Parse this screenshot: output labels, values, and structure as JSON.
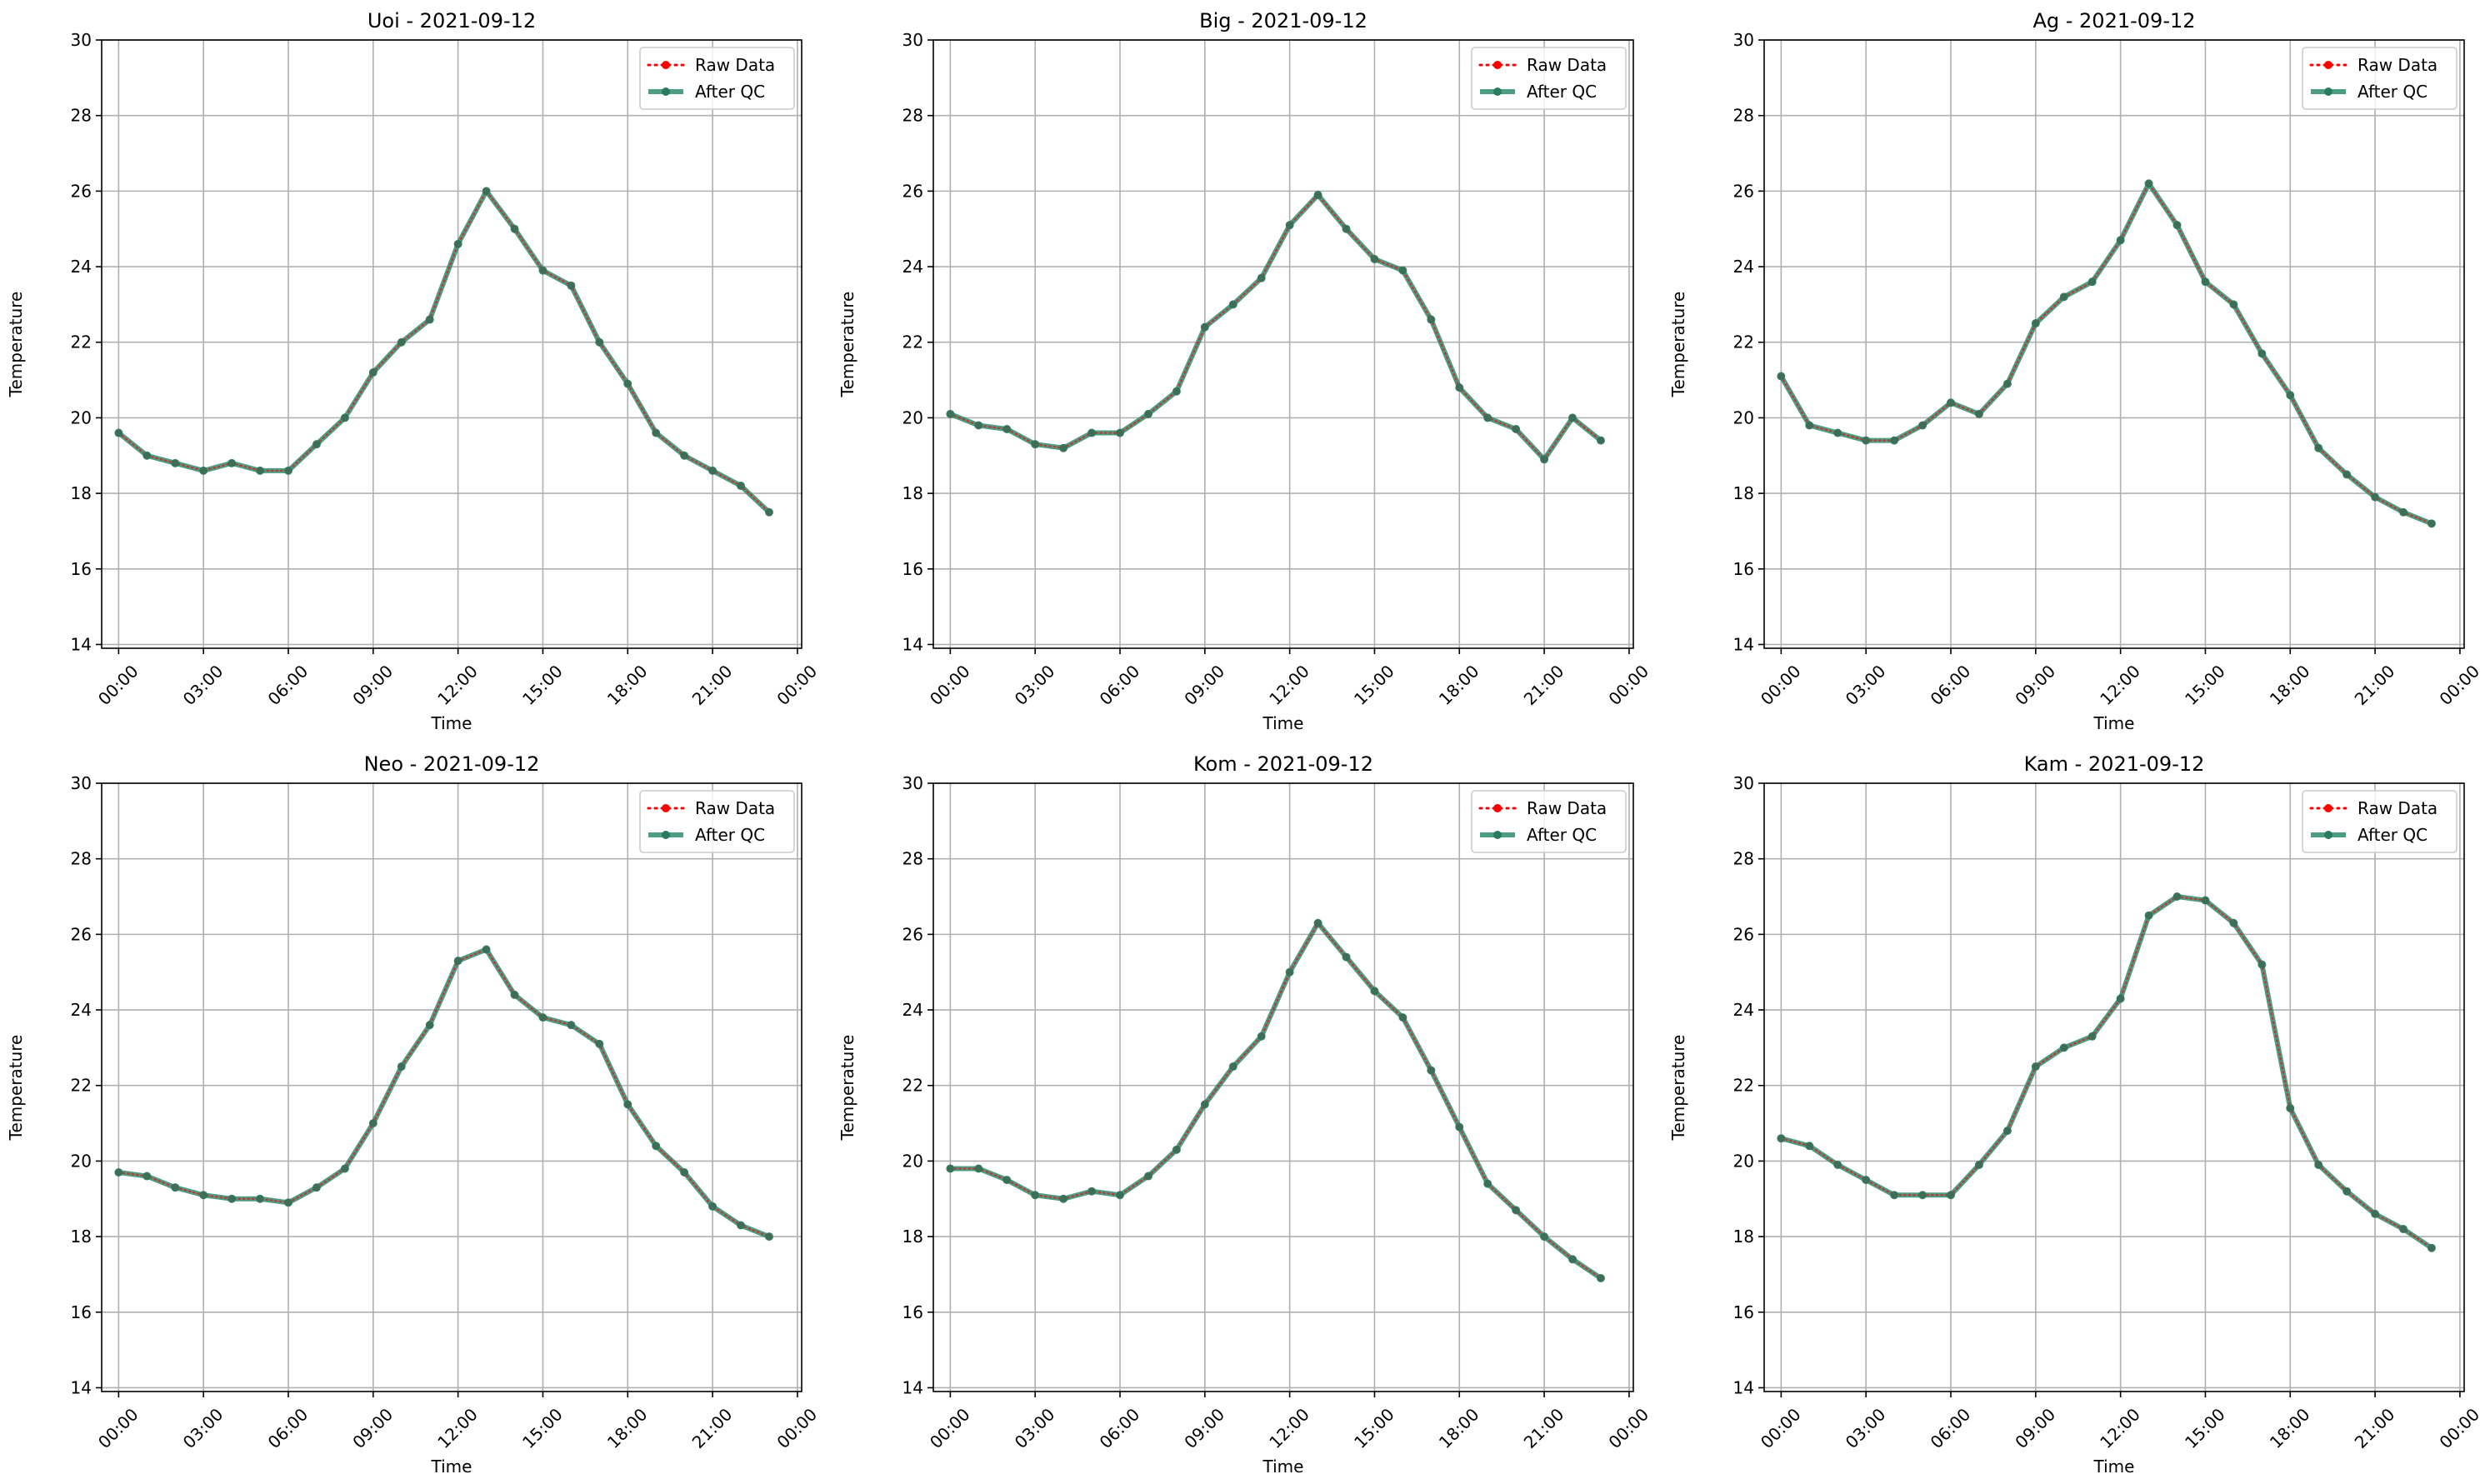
{
  "figure": {
    "date": "2021-09-12"
  },
  "chart_data": [
    {
      "type": "line",
      "title": "Uoi - 2021-09-12",
      "xlabel": "Time",
      "ylabel": "Temperature",
      "x_tick_labels": [
        "00:00",
        "03:00",
        "06:00",
        "09:00",
        "12:00",
        "15:00",
        "18:00",
        "21:00",
        "00:00"
      ],
      "x_ticks_hours": [
        0,
        3,
        6,
        9,
        12,
        15,
        18,
        21,
        24
      ],
      "xlim_hours": [
        -0.6,
        24.15
      ],
      "ylim": [
        13.9,
        30
      ],
      "y_ticks": [
        14,
        16,
        18,
        20,
        22,
        24,
        26,
        28,
        30
      ],
      "grid": true,
      "legend_position": "upper-right",
      "hours": [
        0,
        1,
        2,
        3,
        4,
        5,
        6,
        7,
        8,
        9,
        10,
        11,
        12,
        13,
        14,
        15,
        16,
        17,
        18,
        19,
        20,
        21,
        22,
        23
      ],
      "series": [
        {
          "name": "Raw Data",
          "color": "#ff0000",
          "style": "dotted-markers",
          "values": [
            19.6,
            19.0,
            18.8,
            18.6,
            18.8,
            18.6,
            18.6,
            19.3,
            20.0,
            21.2,
            22.0,
            22.6,
            24.6,
            26.0,
            25.0,
            23.9,
            23.5,
            22.0,
            20.9,
            19.6,
            19.0,
            18.6,
            18.2,
            17.5
          ]
        },
        {
          "name": "After QC",
          "color": "#2e8b6f",
          "style": "solid-markers",
          "values": [
            19.6,
            19.0,
            18.8,
            18.6,
            18.8,
            18.6,
            18.6,
            19.3,
            20.0,
            21.2,
            22.0,
            22.6,
            24.6,
            26.0,
            25.0,
            23.9,
            23.5,
            22.0,
            20.9,
            19.6,
            19.0,
            18.6,
            18.2,
            17.5
          ]
        }
      ]
    },
    {
      "type": "line",
      "title": "Big - 2021-09-12",
      "xlabel": "Time",
      "ylabel": "Temperature",
      "x_tick_labels": [
        "00:00",
        "03:00",
        "06:00",
        "09:00",
        "12:00",
        "15:00",
        "18:00",
        "21:00",
        "00:00"
      ],
      "x_ticks_hours": [
        0,
        3,
        6,
        9,
        12,
        15,
        18,
        21,
        24
      ],
      "xlim_hours": [
        -0.6,
        24.15
      ],
      "ylim": [
        13.9,
        30
      ],
      "y_ticks": [
        14,
        16,
        18,
        20,
        22,
        24,
        26,
        28,
        30
      ],
      "grid": true,
      "legend_position": "upper-right",
      "hours": [
        0,
        1,
        2,
        3,
        4,
        5,
        6,
        7,
        8,
        9,
        10,
        11,
        12,
        13,
        14,
        15,
        16,
        17,
        18,
        19,
        20,
        21,
        22,
        23
      ],
      "series": [
        {
          "name": "Raw Data",
          "color": "#ff0000",
          "style": "dotted-markers",
          "values": [
            20.1,
            19.8,
            19.7,
            19.3,
            19.2,
            19.6,
            19.6,
            20.1,
            20.7,
            22.4,
            23.0,
            23.7,
            25.1,
            25.9,
            25.0,
            24.2,
            23.9,
            22.6,
            20.8,
            20.0,
            19.7,
            18.9,
            20.0,
            19.4
          ]
        },
        {
          "name": "After QC",
          "color": "#2e8b6f",
          "style": "solid-markers",
          "values": [
            20.1,
            19.8,
            19.7,
            19.3,
            19.2,
            19.6,
            19.6,
            20.1,
            20.7,
            22.4,
            23.0,
            23.7,
            25.1,
            25.9,
            25.0,
            24.2,
            23.9,
            22.6,
            20.8,
            20.0,
            19.7,
            18.9,
            20.0,
            19.4
          ]
        }
      ]
    },
    {
      "type": "line",
      "title": "Ag - 2021-09-12",
      "xlabel": "Time",
      "ylabel": "Temperature",
      "x_tick_labels": [
        "00:00",
        "03:00",
        "06:00",
        "09:00",
        "12:00",
        "15:00",
        "18:00",
        "21:00",
        "00:00"
      ],
      "x_ticks_hours": [
        0,
        3,
        6,
        9,
        12,
        15,
        18,
        21,
        24
      ],
      "xlim_hours": [
        -0.6,
        24.15
      ],
      "ylim": [
        13.9,
        30
      ],
      "y_ticks": [
        14,
        16,
        18,
        20,
        22,
        24,
        26,
        28,
        30
      ],
      "grid": true,
      "legend_position": "upper-right",
      "hours": [
        0,
        1,
        2,
        3,
        4,
        5,
        6,
        7,
        8,
        9,
        10,
        11,
        12,
        13,
        14,
        15,
        16,
        17,
        18,
        19,
        20,
        21,
        22,
        23
      ],
      "series": [
        {
          "name": "Raw Data",
          "color": "#ff0000",
          "style": "dotted-markers",
          "values": [
            21.1,
            19.8,
            19.6,
            19.4,
            19.4,
            19.8,
            20.4,
            20.1,
            20.9,
            22.5,
            23.2,
            23.6,
            24.7,
            26.2,
            25.1,
            23.6,
            23.0,
            21.7,
            20.6,
            19.2,
            18.5,
            17.9,
            17.5,
            17.2
          ]
        },
        {
          "name": "After QC",
          "color": "#2e8b6f",
          "style": "solid-markers",
          "values": [
            21.1,
            19.8,
            19.6,
            19.4,
            19.4,
            19.8,
            20.4,
            20.1,
            20.9,
            22.5,
            23.2,
            23.6,
            24.7,
            26.2,
            25.1,
            23.6,
            23.0,
            21.7,
            20.6,
            19.2,
            18.5,
            17.9,
            17.5,
            17.2
          ]
        }
      ]
    },
    {
      "type": "line",
      "title": "Neo - 2021-09-12",
      "xlabel": "Time",
      "ylabel": "Temperature",
      "x_tick_labels": [
        "00:00",
        "03:00",
        "06:00",
        "09:00",
        "12:00",
        "15:00",
        "18:00",
        "21:00",
        "00:00"
      ],
      "x_ticks_hours": [
        0,
        3,
        6,
        9,
        12,
        15,
        18,
        21,
        24
      ],
      "xlim_hours": [
        -0.6,
        24.15
      ],
      "ylim": [
        13.9,
        30
      ],
      "y_ticks": [
        14,
        16,
        18,
        20,
        22,
        24,
        26,
        28,
        30
      ],
      "grid": true,
      "legend_position": "upper-right",
      "hours": [
        0,
        1,
        2,
        3,
        4,
        5,
        6,
        7,
        8,
        9,
        10,
        11,
        12,
        13,
        14,
        15,
        16,
        17,
        18,
        19,
        20,
        21,
        22,
        23
      ],
      "series": [
        {
          "name": "Raw Data",
          "color": "#ff0000",
          "style": "dotted-markers",
          "values": [
            19.7,
            19.6,
            19.3,
            19.1,
            19.0,
            19.0,
            18.9,
            19.3,
            19.8,
            21.0,
            22.5,
            23.6,
            25.3,
            25.6,
            24.4,
            23.8,
            23.6,
            23.1,
            21.5,
            20.4,
            19.7,
            18.8,
            18.3,
            18.0
          ]
        },
        {
          "name": "After QC",
          "color": "#2e8b6f",
          "style": "solid-markers",
          "values": [
            19.7,
            19.6,
            19.3,
            19.1,
            19.0,
            19.0,
            18.9,
            19.3,
            19.8,
            21.0,
            22.5,
            23.6,
            25.3,
            25.6,
            24.4,
            23.8,
            23.6,
            23.1,
            21.5,
            20.4,
            19.7,
            18.8,
            18.3,
            18.0
          ]
        }
      ]
    },
    {
      "type": "line",
      "title": "Kom - 2021-09-12",
      "xlabel": "Time",
      "ylabel": "Temperature",
      "x_tick_labels": [
        "00:00",
        "03:00",
        "06:00",
        "09:00",
        "12:00",
        "15:00",
        "18:00",
        "21:00",
        "00:00"
      ],
      "x_ticks_hours": [
        0,
        3,
        6,
        9,
        12,
        15,
        18,
        21,
        24
      ],
      "xlim_hours": [
        -0.6,
        24.15
      ],
      "ylim": [
        13.9,
        30
      ],
      "y_ticks": [
        14,
        16,
        18,
        20,
        22,
        24,
        26,
        28,
        30
      ],
      "grid": true,
      "legend_position": "upper-right",
      "hours": [
        0,
        1,
        2,
        3,
        4,
        5,
        6,
        7,
        8,
        9,
        10,
        11,
        12,
        13,
        14,
        15,
        16,
        17,
        18,
        19,
        20,
        21,
        22,
        23
      ],
      "series": [
        {
          "name": "Raw Data",
          "color": "#ff0000",
          "style": "dotted-markers",
          "values": [
            19.8,
            19.8,
            19.5,
            19.1,
            19.0,
            19.2,
            19.1,
            19.6,
            20.3,
            21.5,
            22.5,
            23.3,
            25.0,
            26.3,
            25.4,
            24.5,
            23.8,
            22.4,
            20.9,
            19.4,
            18.7,
            18.0,
            17.4,
            16.9
          ]
        },
        {
          "name": "After QC",
          "color": "#2e8b6f",
          "style": "solid-markers",
          "values": [
            19.8,
            19.8,
            19.5,
            19.1,
            19.0,
            19.2,
            19.1,
            19.6,
            20.3,
            21.5,
            22.5,
            23.3,
            25.0,
            26.3,
            25.4,
            24.5,
            23.8,
            22.4,
            20.9,
            19.4,
            18.7,
            18.0,
            17.4,
            16.9
          ]
        }
      ]
    },
    {
      "type": "line",
      "title": "Kam - 2021-09-12",
      "xlabel": "Time",
      "ylabel": "Temperature",
      "x_tick_labels": [
        "00:00",
        "03:00",
        "06:00",
        "09:00",
        "12:00",
        "15:00",
        "18:00",
        "21:00",
        "00:00"
      ],
      "x_ticks_hours": [
        0,
        3,
        6,
        9,
        12,
        15,
        18,
        21,
        24
      ],
      "xlim_hours": [
        -0.6,
        24.15
      ],
      "ylim": [
        13.9,
        30
      ],
      "y_ticks": [
        14,
        16,
        18,
        20,
        22,
        24,
        26,
        28,
        30
      ],
      "grid": true,
      "legend_position": "upper-right",
      "hours": [
        0,
        1,
        2,
        3,
        4,
        5,
        6,
        7,
        8,
        9,
        10,
        11,
        12,
        13,
        14,
        15,
        16,
        17,
        18,
        19,
        20,
        21,
        22,
        23
      ],
      "series": [
        {
          "name": "Raw Data",
          "color": "#ff0000",
          "style": "dotted-markers",
          "values": [
            20.6,
            20.4,
            19.9,
            19.5,
            19.1,
            19.1,
            19.1,
            19.9,
            20.8,
            22.5,
            23.0,
            23.3,
            24.3,
            26.5,
            27.0,
            26.9,
            26.3,
            25.2,
            21.4,
            19.9,
            19.2,
            18.6,
            18.2,
            17.7
          ]
        },
        {
          "name": "After QC",
          "color": "#2e8b6f",
          "style": "solid-markers",
          "values": [
            20.6,
            20.4,
            19.9,
            19.5,
            19.1,
            19.1,
            19.1,
            19.9,
            20.8,
            22.5,
            23.0,
            23.3,
            24.3,
            26.5,
            27.0,
            26.9,
            26.3,
            25.2,
            21.4,
            19.9,
            19.2,
            18.6,
            18.2,
            17.7
          ]
        }
      ]
    }
  ]
}
